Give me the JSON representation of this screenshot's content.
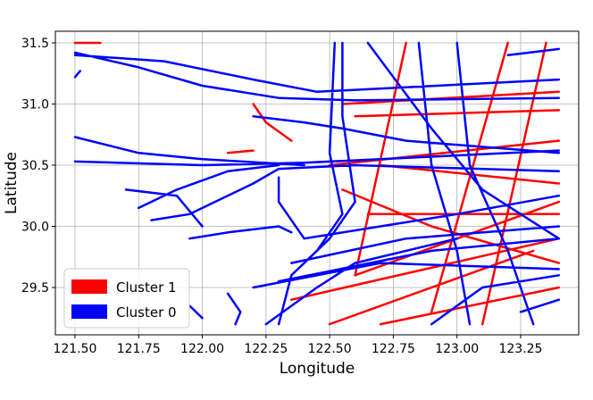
{
  "chart_data": {
    "type": "line",
    "xlabel": "Longitude",
    "ylabel": "Latitude",
    "xlim": [
      121.423,
      123.478
    ],
    "ylim": [
      29.113,
      31.595
    ],
    "xticks": [
      {
        "value": 121.5,
        "label": "121.50"
      },
      {
        "value": 121.75,
        "label": "121.75"
      },
      {
        "value": 122,
        "label": "122.00"
      },
      {
        "value": 122.25,
        "label": "122.25"
      },
      {
        "value": 122.5,
        "label": "122.50"
      },
      {
        "value": 122.75,
        "label": "122.75"
      },
      {
        "value": 123,
        "label": "123.00"
      },
      {
        "value": 123.25,
        "label": "123.25"
      }
    ],
    "yticks": [
      29.5,
      {
        "value": 30,
        "label": "30.0"
      },
      30.5,
      {
        "value": 31,
        "label": "31.0"
      },
      31.5
    ],
    "grid": true,
    "legend": "lower left",
    "series": [
      {
        "name": "Cluster 1",
        "color": "#ff0000",
        "x": [
          122.55,
          123.4,
          null,
          122.6,
          123.4,
          null,
          122.5,
          123.4,
          null,
          122.7,
          123.4,
          null,
          122.6,
          123.4,
          null,
          122.35,
          123.4,
          null,
          122.5,
          123.3,
          null,
          122.7,
          123.4,
          null,
          122.8,
          122.6,
          null,
          123.2,
          122.9,
          null,
          123.35,
          123.1,
          null,
          122.65,
          123.4,
          null,
          121.5,
          121.6,
          null,
          122.2,
          122.25,
          122.35,
          null,
          122.1,
          122.2,
          null,
          122.55,
          122.9,
          123.4
        ],
        "values": [
          31.0,
          31.1,
          null,
          30.9,
          30.95,
          null,
          30.5,
          30.7,
          null,
          30.5,
          30.35,
          null,
          29.6,
          30.2,
          null,
          29.4,
          29.9,
          null,
          29.2,
          29.8,
          null,
          29.2,
          29.5,
          null,
          31.5,
          29.6,
          null,
          31.5,
          29.3,
          null,
          31.5,
          29.2,
          null,
          30.1,
          30.1,
          null,
          31.5,
          31.5,
          null,
          31.0,
          30.85,
          30.7,
          null,
          30.6,
          30.62,
          null,
          30.3,
          30.0,
          29.7
        ]
      },
      {
        "name": "Cluster 0",
        "color": "#0000ff",
        "x": [
          121.5,
          121.75,
          122.0,
          122.3,
          122.6,
          123.4,
          null,
          121.5,
          121.85,
          122.2,
          122.45,
          123.4,
          null,
          121.5,
          122.0,
          122.4,
          123.4,
          null,
          121.5,
          121.75,
          122.0,
          122.4,
          null,
          121.75,
          121.9,
          122.1,
          122.3,
          null,
          121.8,
          121.95,
          122.2,
          122.3,
          122.6,
          123.4,
          null,
          121.7,
          121.9,
          122.0,
          null,
          121.95,
          122.1,
          122.3,
          122.35,
          null,
          122.3,
          122.3,
          122.35,
          122.4,
          null,
          122.55,
          122.55,
          122.6,
          122.5,
          122.35,
          122.3,
          null,
          122.52,
          122.5,
          122.55,
          122.45,
          null,
          122.4,
          122.7,
          123.0,
          123.4,
          null,
          122.35,
          122.8,
          123.4,
          null,
          122.3,
          122.9,
          123.4,
          null,
          122.2,
          122.7,
          123.4,
          null,
          122.85,
          122.9,
          123.0,
          123.05,
          null,
          123.0,
          123.05,
          123.2,
          123.3,
          null,
          122.65,
          122.9,
          123.1,
          123.4,
          null,
          122.25,
          122.45,
          122.6,
          123.0,
          null,
          123.2,
          123.4,
          null,
          122.1,
          122.15,
          122.13,
          null,
          121.95,
          122.0,
          null,
          122.2,
          122.4,
          122.55,
          122.8,
          123.4,
          null,
          122.9,
          123.1,
          123.4,
          null,
          123.25,
          123.4,
          null,
          121.5,
          121.52
        ],
        "values": [
          31.42,
          31.3,
          31.15,
          31.05,
          31.03,
          31.05,
          null,
          31.4,
          31.35,
          31.2,
          31.1,
          31.2,
          null,
          30.53,
          30.5,
          30.52,
          30.62,
          null,
          30.73,
          30.6,
          30.55,
          30.5,
          null,
          30.15,
          30.3,
          30.45,
          30.5,
          null,
          30.05,
          30.1,
          30.35,
          30.47,
          30.5,
          30.45,
          null,
          30.3,
          30.25,
          30.0,
          null,
          29.9,
          29.95,
          30.0,
          29.95,
          null,
          30.4,
          30.2,
          30.05,
          29.9,
          null,
          31.5,
          30.9,
          30.2,
          29.9,
          29.6,
          29.2,
          null,
          31.5,
          30.6,
          30.1,
          29.8,
          null,
          29.9,
          30.0,
          30.1,
          30.25,
          null,
          29.7,
          29.9,
          30.0,
          null,
          29.55,
          29.8,
          29.9,
          null,
          29.5,
          29.7,
          29.65,
          null,
          31.5,
          30.5,
          29.8,
          29.2,
          null,
          31.5,
          30.5,
          29.8,
          29.2,
          null,
          31.5,
          30.8,
          30.3,
          29.9,
          null,
          29.2,
          29.5,
          29.7,
          29.9,
          null,
          31.4,
          31.45,
          null,
          29.45,
          29.3,
          29.2,
          null,
          29.35,
          29.25,
          null,
          30.9,
          30.85,
          30.8,
          30.7,
          30.6,
          null,
          29.2,
          29.5,
          29.6,
          null,
          29.3,
          29.4,
          null,
          31.22,
          31.27
        ]
      }
    ]
  }
}
